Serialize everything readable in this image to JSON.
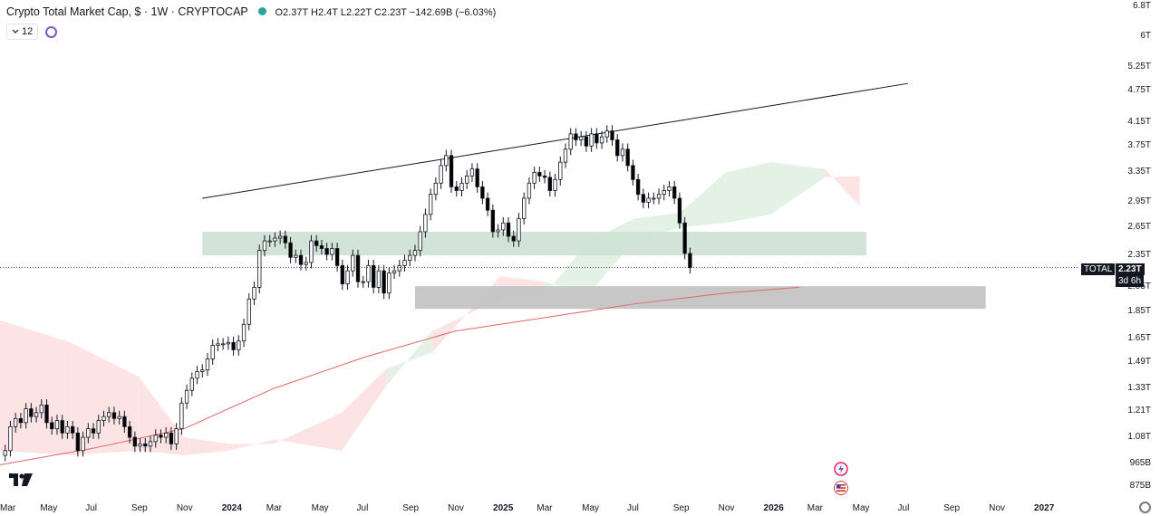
{
  "header": {
    "title": "Crypto Total Market Cap, $ · 1W · CRYPTOCAP",
    "ohlc": "O2.37T H2.4T L2.22T C2.23T −142.69B (−6.03%)"
  },
  "controls": {
    "interval_count": "12"
  },
  "price_tag": {
    "symbol": "TOTAL",
    "value": "2.23T",
    "countdown": "3d 6h"
  },
  "colors": {
    "up": "#ffffff",
    "down": "#000000",
    "wick": "#131722",
    "cloud_bull": "#e3f2e5",
    "cloud_bear": "#fde4e4",
    "zone_green": "#cfe3d5",
    "zone_gray": "#c4c4c4",
    "ma": "#e06666",
    "trendline": "#131722"
  },
  "icons": [
    "lightning-icon",
    "us-flag-icon",
    "tradingview-logo-icon",
    "gear-icon",
    "sync-icon",
    "chevron-down-icon"
  ],
  "chart_data": {
    "type": "candlestick",
    "scale": "log",
    "ylim": [
      0.84,
      7.0
    ],
    "y_ticks": [
      "6.8T",
      "6T",
      "5.25T",
      "4.75T",
      "4.15T",
      "3.75T",
      "3.35T",
      "2.95T",
      "2.65T",
      "2.35T",
      "2.05T",
      "1.85T",
      "1.65T",
      "1.49T",
      "1.33T",
      "1.21T",
      "1.08T",
      "965B",
      "875B"
    ],
    "x_ticks": [
      "Mar",
      "May",
      "Jul",
      "Sep",
      "Nov",
      "2024",
      "Mar",
      "May",
      "Jul",
      "Sep",
      "Nov",
      "2025",
      "Mar",
      "May",
      "Jul",
      "Sep",
      "Nov",
      "2026",
      "Mar",
      "May",
      "Jul",
      "Sep",
      "Nov",
      "2027"
    ],
    "x_tick_dates": [
      "2023-03-01",
      "2023-05-01",
      "2023-07-01",
      "2023-09-01",
      "2023-11-01",
      "2024-01-01",
      "2024-03-01",
      "2024-05-01",
      "2024-07-01",
      "2024-09-01",
      "2024-11-01",
      "2025-01-01",
      "2025-03-01",
      "2025-05-01",
      "2025-07-01",
      "2025-09-01",
      "2025-11-01",
      "2026-01-01",
      "2026-03-01",
      "2026-05-01",
      "2026-07-01",
      "2026-09-01",
      "2026-11-01",
      "2027-01-01"
    ],
    "x_range": [
      "2023-02-26",
      "2027-02-14"
    ],
    "first_week": "2023-03-05",
    "closes": [
      1.02,
      1.13,
      1.17,
      1.15,
      1.22,
      1.18,
      1.2,
      1.24,
      1.15,
      1.12,
      1.16,
      1.1,
      1.13,
      1.1,
      1.02,
      1.08,
      1.12,
      1.1,
      1.16,
      1.18,
      1.2,
      1.17,
      1.18,
      1.13,
      1.08,
      1.04,
      1.05,
      1.04,
      1.06,
      1.09,
      1.08,
      1.1,
      1.05,
      1.12,
      1.25,
      1.32,
      1.39,
      1.43,
      1.44,
      1.51,
      1.6,
      1.61,
      1.61,
      1.62,
      1.57,
      1.63,
      1.75,
      1.95,
      2.05,
      2.4,
      2.5,
      2.5,
      2.53,
      2.55,
      2.48,
      2.33,
      2.35,
      2.26,
      2.28,
      2.5,
      2.45,
      2.42,
      2.36,
      2.42,
      2.25,
      2.08,
      2.2,
      2.35,
      2.1,
      2.1,
      2.25,
      2.05,
      2.2,
      2.0,
      2.18,
      2.2,
      2.25,
      2.3,
      2.35,
      2.4,
      2.6,
      2.8,
      3.05,
      3.2,
      3.45,
      3.6,
      3.15,
      3.1,
      3.2,
      3.3,
      3.4,
      3.15,
      3.0,
      2.85,
      2.6,
      2.62,
      2.7,
      2.55,
      2.5,
      2.75,
      3.0,
      3.2,
      3.35,
      3.3,
      3.28,
      3.1,
      3.25,
      3.5,
      3.7,
      3.95,
      3.85,
      3.9,
      3.75,
      3.95,
      3.8,
      3.9,
      4.0,
      3.85,
      3.6,
      3.7,
      3.45,
      3.25,
      3.05,
      2.95,
      3.0,
      3.0,
      3.05,
      3.1,
      3.15,
      3.0,
      2.7,
      2.37,
      2.23
    ],
    "trendline": [
      {
        "date": "2023-11-26",
        "value": 3.0
      },
      {
        "date": "2026-07-05",
        "value": 4.9
      }
    ],
    "zones": [
      {
        "from": "2023-11-26",
        "to": "2026-05-10",
        "low": 2.35,
        "high": 2.6,
        "color": "green"
      },
      {
        "from": "2024-09-08",
        "to": "2026-10-18",
        "low": 1.87,
        "high": 2.06,
        "color": "gray"
      }
    ],
    "ma_line": [
      {
        "date": "2023-02-26",
        "value": 0.96
      },
      {
        "date": "2023-07-01",
        "value": 1.03
      },
      {
        "date": "2023-11-01",
        "value": 1.12
      },
      {
        "date": "2024-03-01",
        "value": 1.33
      },
      {
        "date": "2024-07-01",
        "value": 1.52
      },
      {
        "date": "2024-11-01",
        "value": 1.7
      },
      {
        "date": "2025-03-01",
        "value": 1.8
      },
      {
        "date": "2025-07-01",
        "value": 1.91
      },
      {
        "date": "2025-11-01",
        "value": 2.0
      },
      {
        "date": "2026-02-08",
        "value": 2.05
      }
    ],
    "cloud": [
      {
        "date": "2023-02-26",
        "a": 1.78,
        "b": 1.02
      },
      {
        "date": "2023-06-01",
        "a": 1.62,
        "b": 1.0
      },
      {
        "date": "2023-09-01",
        "a": 1.4,
        "b": 1.02
      },
      {
        "date": "2023-11-01",
        "a": 1.08,
        "b": 1.0
      },
      {
        "date": "2024-01-01",
        "a": 1.05,
        "b": 1.02
      },
      {
        "date": "2024-03-01",
        "a": 1.05,
        "b": 1.07
      },
      {
        "date": "2024-06-01",
        "a": 1.2,
        "b": 1.02
      },
      {
        "date": "2024-08-01",
        "a": 1.45,
        "b": 1.35
      },
      {
        "date": "2024-10-01",
        "a": 1.55,
        "b": 1.7
      },
      {
        "date": "2025-01-01",
        "a": 2.15,
        "b": 1.95
      },
      {
        "date": "2025-03-01",
        "a": 2.1,
        "b": 1.98
      },
      {
        "date": "2025-05-01",
        "a": 2.0,
        "b": 2.5
      },
      {
        "date": "2025-07-01",
        "a": 2.5,
        "b": 2.75
      },
      {
        "date": "2025-09-01",
        "a": 2.65,
        "b": 2.82
      },
      {
        "date": "2025-11-01",
        "a": 2.7,
        "b": 3.35
      },
      {
        "date": "2026-01-01",
        "a": 2.8,
        "b": 3.5
      },
      {
        "date": "2026-03-15",
        "a": 3.28,
        "b": 3.4
      },
      {
        "date": "2026-05-01",
        "a": 3.3,
        "b": 2.9
      }
    ],
    "last_price": 2.23
  }
}
